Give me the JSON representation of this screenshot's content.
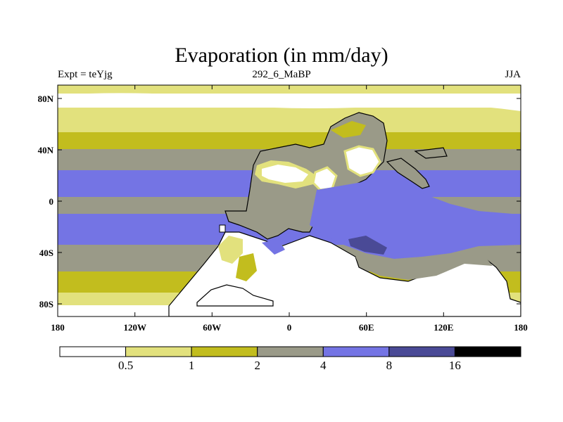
{
  "title": "Evaporation (in mm/day)",
  "subtitle_left": "Expt = teYjg",
  "subtitle_center": "292_6_MaBP",
  "subtitle_right": "JJA",
  "map": {
    "lat_ticks": [
      "80N",
      "40N",
      "0",
      "40S",
      "80S"
    ],
    "lon_ticks": [
      "180",
      "120W",
      "60W",
      "0",
      "60E",
      "120E",
      "180"
    ],
    "lon_range": [
      -180,
      180
    ],
    "lat_range": [
      -90,
      90
    ]
  },
  "colorbar": {
    "labels": [
      "0.5",
      "1",
      "2",
      "4",
      "8",
      "16"
    ],
    "colors": [
      "#ffffff",
      "#e2e17d",
      "#c2bd1e",
      "#9a9a88",
      "#7474e4",
      "#4a4a96",
      "#000000"
    ]
  }
}
